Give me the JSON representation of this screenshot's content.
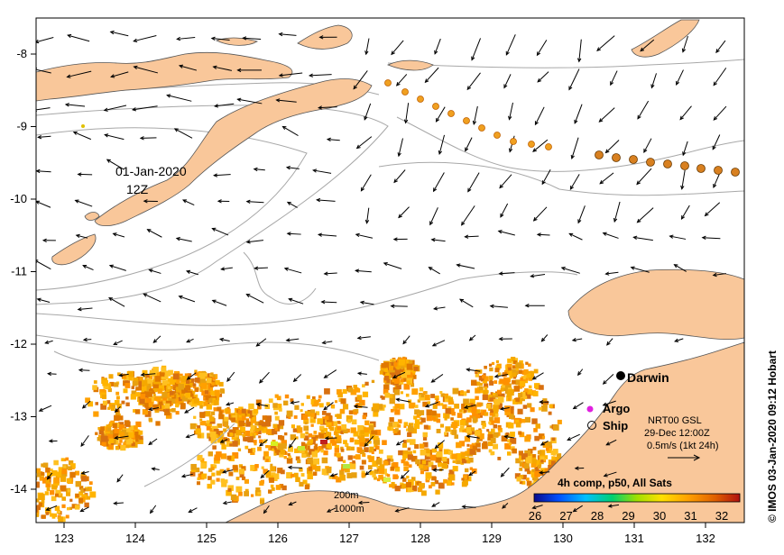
{
  "map": {
    "date_label": "01-Jan-2020",
    "time_label": "12Z",
    "x_ticks": [
      "123",
      "124",
      "125",
      "126",
      "127",
      "128",
      "129",
      "130",
      "131",
      "132"
    ],
    "y_ticks": [
      "-8",
      "-9",
      "-10",
      "-11",
      "-12",
      "-13",
      "-14"
    ],
    "city": "Darwin",
    "contour_labels": [
      "200m",
      "1000m"
    ],
    "credit": "© IMOS 03-Jan-2020 09:12 Hobart",
    "legend": {
      "argo": "Argo",
      "ship": "Ship",
      "source": "NRT00 GSL",
      "valid": "29-Dec 12:00Z",
      "scale": "0.5m/s (1kt 24h)",
      "argo_color": "#e020e0"
    },
    "colorbar": {
      "title": "4h comp, p50, All Sats",
      "ticks": [
        "26",
        "27",
        "28",
        "29",
        "30",
        "31",
        "32"
      ],
      "colors": [
        "#0a0a8c",
        "#0050ff",
        "#00c0ff",
        "#00d070",
        "#a0e000",
        "#ffe000",
        "#ffa000",
        "#e06000",
        "#b01010"
      ]
    },
    "colors": {
      "land": "#f9c79a",
      "coast": "#555555",
      "isobath": "#a8a8a8",
      "ocean": "#ffffff",
      "drifter_track": "#d88020"
    }
  }
}
